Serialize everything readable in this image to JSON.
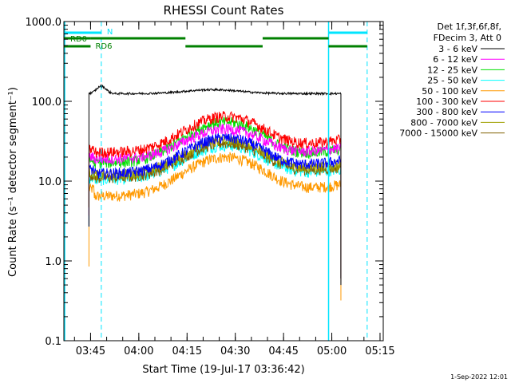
{
  "chart_data": {
    "type": "line",
    "title": "RHESSI Count Rates",
    "xlabel": "Start Time (19-Jul-17 03:36:42)",
    "ylabel": "Count Rate (s⁻¹ detector segment⁻¹)",
    "yscale": "log",
    "ylim": [
      0.1,
      1000
    ],
    "xlim": [
      "03:36:42",
      "05:16:00"
    ],
    "grid": false,
    "x_ticks": [
      "03:45",
      "04:00",
      "04:15",
      "04:30",
      "04:45",
      "05:00",
      "05:15"
    ],
    "y_ticks": [
      "0.1",
      "1.0",
      "10.0",
      "100.0",
      "1000.0"
    ],
    "legend": {
      "placement": "right",
      "header": [
        "Det 1f,3f,6f,8f,",
        "FDecim 3, Att 0"
      ]
    },
    "data_window": [
      "03:44:30",
      "05:02:50"
    ],
    "series": [
      {
        "name": "3 - 6 keV",
        "color": "#000000",
        "values": {
          "start": 120,
          "pre": [
            125,
            155,
            110
          ],
          "flat": 125,
          "peak_time": "04:23",
          "peak": 150,
          "end": 130
        }
      },
      {
        "name": "6 - 12 keV",
        "color": "#ff00ff",
        "values": {
          "start": 20,
          "quiet": 19,
          "peak_time": "04:27",
          "peak": 45,
          "end": 26
        }
      },
      {
        "name": "12 - 25 keV",
        "color": "#00e000",
        "values": {
          "start": 18,
          "quiet": 17,
          "peak_time": "04:27",
          "peak": 55,
          "end": 25
        }
      },
      {
        "name": "25 - 50 keV",
        "color": "#00ffff",
        "values": {
          "start": 11,
          "quiet": 10.5,
          "peak_time": "04:27",
          "peak": 28,
          "end": 14
        }
      },
      {
        "name": "50 - 100 keV",
        "color": "#ff9900",
        "values": {
          "start": 8,
          "quiet": 6.5,
          "peak_time": "04:27",
          "peak": 20,
          "end": 9
        }
      },
      {
        "name": "100 - 300 keV",
        "color": "#ff0000",
        "values": {
          "start": 25,
          "quiet": 23,
          "peak_time": "04:27",
          "peak": 65,
          "end": 33
        }
      },
      {
        "name": "300 - 800 keV",
        "color": "#0000ff",
        "values": {
          "start": 14,
          "quiet": 12.5,
          "peak_time": "04:27",
          "peak": 35,
          "end": 18
        }
      },
      {
        "name": "800 - 7000 keV",
        "color": "#a0a000",
        "values": {
          "start": 13,
          "quiet": 12,
          "peak_time": "04:27",
          "peak": 33,
          "end": 16
        }
      },
      {
        "name": "7000 - 15000 keV",
        "color": "#806000",
        "values": {
          "start": 12,
          "quiet": 11,
          "peak_time": "04:27",
          "peak": 30,
          "end": 15
        }
      }
    ],
    "annotations": {
      "saa_periods": [
        {
          "label": "",
          "start": "03:36:42",
          "end": "03:48:20"
        },
        {
          "label": "",
          "start": "04:59:00",
          "end": "05:11:00"
        }
      ],
      "night_periods": [
        {
          "label": "N",
          "start": "03:48:20",
          "end": "03:48:20"
        }
      ],
      "attenuator_bars": [
        {
          "label": "RD0",
          "start": "03:36:42",
          "end": "03:45:00",
          "level": 1
        },
        {
          "label": "RD6",
          "start": "03:36:42",
          "end": "03:45:00",
          "level": 2
        },
        {
          "label": "",
          "start": "03:45:00",
          "end": "04:14:30",
          "level": 1
        },
        {
          "label": "",
          "start": "04:14:30",
          "end": "04:38:30",
          "level": 2
        },
        {
          "label": "",
          "start": "04:38:30",
          "end": "04:59:00",
          "level": 1
        },
        {
          "label": "",
          "start": "04:59:00",
          "end": "05:11:00",
          "level": 2
        }
      ]
    },
    "footer_date": "1-Sep-2022 12:01"
  }
}
